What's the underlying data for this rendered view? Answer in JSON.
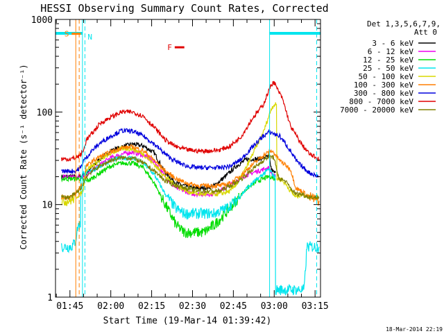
{
  "chart_data": {
    "type": "line",
    "title": "HESSI Observing Summary Count Rates, Corrected",
    "xlabel": "Start Time (19-Mar-14 01:39:42)",
    "ylabel": "Corrected Count Rate (s⁻¹ detector⁻¹)",
    "yscale": "log",
    "ylim": [
      1,
      1000
    ],
    "xlim": [
      "01:39:42",
      "03:17:00"
    ],
    "x_tick_labels": [
      "01:45",
      "02:00",
      "02:15",
      "02:30",
      "02:45",
      "03:00",
      "03:15"
    ],
    "x_tick_minutes": [
      105,
      120,
      135,
      150,
      165,
      180,
      195
    ],
    "y_tick_labels": [
      "1",
      "10",
      "100",
      "1000"
    ],
    "y_tick_values": [
      1,
      10,
      100,
      1000
    ],
    "legend_position": "right",
    "legend_header": [
      "Det 1,3,5,6,7,9,",
      "Att 0"
    ],
    "timestamp": "18-Mar-2014 22:19",
    "annotations": [
      {
        "label": "S",
        "color": "#ff7f00",
        "x_start": "01:47:10",
        "x_end": "01:49:00",
        "y": 700
      },
      {
        "label": "N",
        "color": "#00e5ee",
        "x": "01:50:30",
        "y": 650
      },
      {
        "label": "F",
        "color": "#e00000",
        "x_start": "02:25:00",
        "x_end": "02:27:00",
        "y": 500
      }
    ],
    "series": [
      {
        "name": "3 - 6 keV",
        "color": "#000000",
        "x": [
          101.9,
          106,
          107,
          109,
          111,
          113,
          116,
          120,
          124,
          128,
          132,
          136,
          140,
          144,
          147,
          150,
          154,
          158,
          162,
          166,
          170,
          174,
          178,
          179,
          180,
          180.5
        ],
        "y": [
          20,
          20,
          20,
          20,
          22,
          25,
          31,
          38,
          42,
          45,
          43,
          36,
          22,
          17,
          16,
          15,
          15,
          16,
          20,
          26,
          31,
          31,
          33,
          24,
          22,
          22
        ]
      },
      {
        "name": "6 - 12 keV",
        "color": "#ee00ee",
        "x": [
          101.9,
          106,
          107,
          109,
          111,
          113,
          116,
          120,
          124,
          128,
          132,
          136,
          140,
          144,
          147,
          150,
          154,
          158,
          162,
          166,
          170,
          174,
          178,
          179,
          180,
          180.5
        ],
        "y": [
          20,
          20,
          20,
          20,
          21,
          23,
          27,
          32,
          35,
          37,
          34,
          29,
          20,
          15,
          14,
          13,
          13,
          13,
          15,
          18,
          21,
          23,
          25,
          22,
          20,
          20
        ]
      },
      {
        "name": "12 - 25 keV",
        "color": "#00dd00",
        "x": [
          101.9,
          106,
          107,
          109,
          111,
          113,
          116,
          120,
          124,
          128,
          132,
          136,
          140,
          144,
          147,
          150,
          154,
          158,
          162,
          166,
          170,
          174,
          178,
          179,
          180,
          180.5
        ],
        "y": [
          19,
          19,
          19,
          19,
          18,
          19,
          22,
          26,
          28,
          28,
          25,
          17,
          10,
          6,
          5,
          5,
          5,
          6,
          8,
          11,
          15,
          18,
          20,
          20,
          19,
          19
        ]
      },
      {
        "name": "25 - 50 keV",
        "color": "#00e5ee",
        "x": [
          101.9,
          105,
          106,
          107,
          108,
          109,
          110,
          111,
          113,
          116,
          120,
          124,
          128,
          132,
          136,
          140,
          144,
          147,
          150,
          154,
          158,
          162,
          166,
          170,
          174,
          178,
          179,
          180,
          180.5,
          184,
          188,
          191,
          192,
          193,
          194,
          195,
          196.5
        ],
        "y": [
          3.5,
          3.5,
          3.6,
          4,
          6,
          20,
          22,
          22,
          23,
          26,
          30,
          32,
          32,
          28,
          21,
          13,
          9,
          8,
          8,
          8,
          8,
          9,
          11,
          15,
          19,
          24,
          22,
          20,
          1.2,
          1.2,
          1.2,
          1.2,
          3.5,
          3.5,
          3.5,
          3.5,
          3.5
        ]
      },
      {
        "name": "50 - 100 keV",
        "color": "#d8d800",
        "x": [
          101.9,
          105,
          107,
          109,
          110,
          111,
          113,
          116,
          120,
          124,
          128,
          132,
          136,
          140,
          144,
          148,
          152,
          156,
          160,
          164,
          167,
          170,
          173,
          176,
          178,
          179,
          180,
          181,
          182,
          184,
          186,
          188,
          190,
          193,
          196.5
        ],
        "y": [
          11,
          11,
          12,
          13,
          15,
          24,
          26,
          30,
          36,
          40,
          40,
          35,
          27,
          20,
          16,
          14,
          13,
          13,
          13,
          14,
          18,
          26,
          40,
          60,
          90,
          110,
          120,
          19,
          19,
          17,
          14,
          12,
          13,
          12,
          12
        ]
      },
      {
        "name": "100 - 300 keV",
        "color": "#ff7f00",
        "x": [
          101.9,
          105,
          107,
          108,
          109,
          110,
          111,
          113,
          116,
          120,
          124,
          128,
          132,
          136,
          140,
          144,
          148,
          152,
          156,
          160,
          164,
          168,
          172,
          176,
          178,
          179,
          180,
          182,
          184,
          186,
          188,
          190,
          193,
          196.5
        ],
        "y": [
          12,
          12,
          13,
          14,
          16,
          17,
          26,
          29,
          33,
          37,
          41,
          42,
          38,
          30,
          23,
          19,
          17,
          16,
          16,
          16,
          17,
          21,
          27,
          34,
          37,
          38,
          36,
          30,
          27,
          24,
          15,
          14,
          12,
          11
        ]
      },
      {
        "name": "300 - 800 keV",
        "color": "#0000dd",
        "x": [
          101.9,
          105,
          107,
          108,
          109,
          110,
          111,
          113,
          116,
          120,
          124,
          128,
          132,
          136,
          140,
          144,
          148,
          152,
          156,
          160,
          164,
          168,
          172,
          176,
          178,
          179,
          180,
          182,
          184,
          186,
          188,
          190,
          193,
          196.5
        ],
        "y": [
          23,
          23,
          23,
          24,
          25,
          30,
          32,
          38,
          46,
          55,
          63,
          62,
          55,
          45,
          35,
          29,
          26,
          25,
          25,
          25,
          26,
          31,
          42,
          55,
          60,
          60,
          58,
          55,
          46,
          38,
          30,
          26,
          22,
          20
        ]
      },
      {
        "name": "800 - 7000 keV",
        "color": "#e00000",
        "x": [
          101.9,
          105,
          107,
          108,
          109,
          110,
          111,
          113,
          116,
          120,
          124,
          128,
          132,
          136,
          140,
          144,
          148,
          152,
          156,
          160,
          164,
          168,
          172,
          176,
          178,
          179,
          180,
          181,
          183,
          186,
          190,
          193,
          196.5
        ],
        "y": [
          31,
          31,
          32,
          33,
          35,
          38,
          50,
          58,
          75,
          88,
          100,
          100,
          90,
          68,
          50,
          42,
          39,
          38,
          38,
          39,
          43,
          55,
          85,
          120,
          170,
          200,
          210,
          180,
          140,
          70,
          45,
          35,
          31
        ]
      },
      {
        "name": "7000 - 20000 keV",
        "color": "#808000",
        "x": [
          101.9,
          105,
          107,
          108,
          109,
          110,
          111,
          113,
          116,
          120,
          124,
          128,
          132,
          136,
          140,
          144,
          148,
          152,
          156,
          160,
          164,
          168,
          172,
          176,
          178,
          179,
          180,
          181,
          182,
          184,
          186,
          188,
          190,
          193,
          196.5
        ],
        "y": [
          12,
          12,
          13,
          14,
          15,
          17,
          20,
          23,
          26,
          30,
          32,
          32,
          28,
          23,
          18,
          16,
          15,
          14,
          14,
          14,
          16,
          19,
          24,
          30,
          33,
          33,
          32,
          22,
          19,
          18,
          15,
          13,
          13,
          12,
          12
        ]
      }
    ]
  }
}
